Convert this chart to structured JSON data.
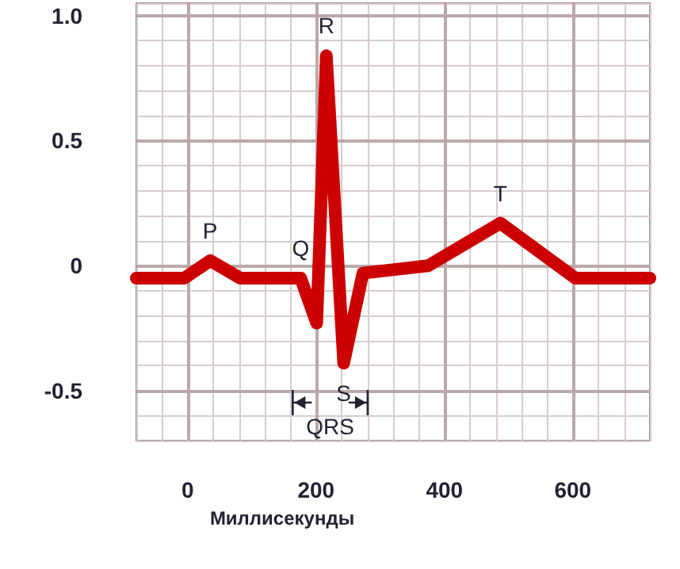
{
  "chart_data": {
    "type": "line",
    "xlabel": "Миллисекунды",
    "x": [
      -80,
      -5,
      35,
      82,
      176,
      201,
      216,
      243,
      273,
      375,
      487,
      604,
      720
    ],
    "series": [
      {
        "color": "#cc0000",
        "values": [
          -0.05,
          -0.05,
          0.02,
          -0.05,
          -0.05,
          -0.23,
          0.84,
          -0.39,
          -0.03,
          0.0,
          0.17,
          -0.05,
          -0.05
        ]
      }
    ],
    "xlim": [
      -80,
      720
    ],
    "xticks": [
      0,
      200,
      400,
      600
    ],
    "ylim": [
      -0.7,
      1.05
    ],
    "yticks": [
      -0.5,
      0,
      0.5,
      {
        "value": 1,
        "label": "1.0"
      }
    ],
    "grid": true,
    "marker": "none",
    "line_style": "solid",
    "annotations": [
      {
        "text": "P",
        "x": 35,
        "y": 0.02
      },
      {
        "text": "Q",
        "x": 176,
        "y": -0.05
      },
      {
        "text": "R",
        "x": 216,
        "y": 0.84
      },
      {
        "text": "S",
        "x": 243,
        "y": -0.39
      },
      {
        "text": "T",
        "x": 487,
        "y": 0.17
      },
      "QRS"
    ]
  }
}
